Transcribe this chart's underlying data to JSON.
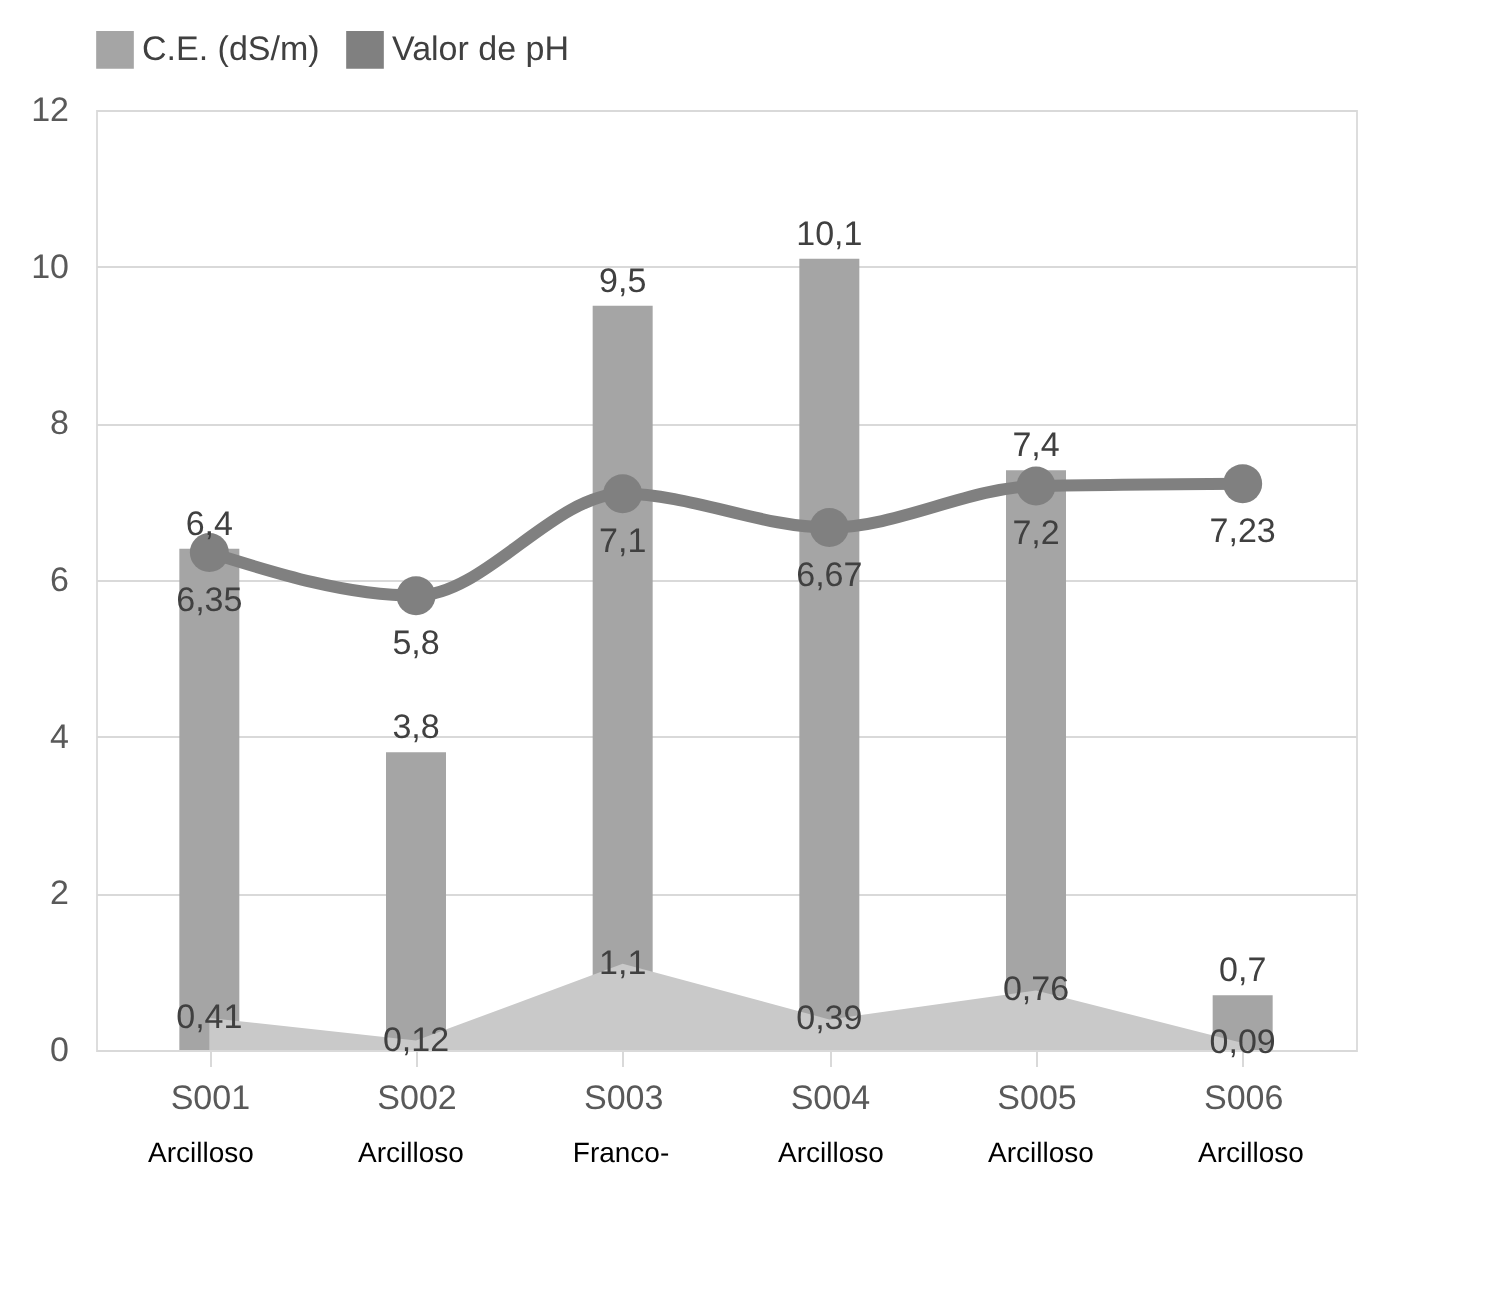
{
  "chart_data": {
    "type": "bar",
    "categories": [
      "S001",
      "S002",
      "S003",
      "S004",
      "S005",
      "S006"
    ],
    "series": [
      {
        "name": "C.E. (dS/m)",
        "color": "#a5a5a5",
        "values": [
          6.4,
          3.8,
          9.5,
          10.1,
          7.4,
          0.7
        ],
        "value_labels": [
          "6,4",
          "3,8",
          "9,5",
          "10,1",
          "7,4",
          "0,7"
        ]
      },
      {
        "type": "line",
        "name": "Valor de pH",
        "color": "#808080",
        "values": [
          6.35,
          5.8,
          7.1,
          6.67,
          7.2,
          7.23
        ],
        "value_labels": [
          "6,35",
          "5,8",
          "7,1",
          "6,67",
          "7,2",
          "7,23"
        ],
        "marker": "circle",
        "line_style": "solid"
      },
      {
        "type": "area",
        "color": "#c9c9c9",
        "values": [
          0.41,
          0.12,
          1.1,
          0.39,
          0.76,
          0.09
        ],
        "value_labels": [
          "0,41",
          "0,12",
          "1,1",
          "0,39",
          "0,76",
          "0,09"
        ]
      }
    ],
    "ylim": [
      0,
      12
    ],
    "yticks": [
      0,
      2,
      4,
      6,
      8,
      10,
      12
    ],
    "grid": "y",
    "legend": "top",
    "annotations": [
      "Arcilloso",
      "Arcilloso",
      "Franco-",
      "Arcilloso",
      "Arcilloso",
      "Arcilloso"
    ]
  }
}
